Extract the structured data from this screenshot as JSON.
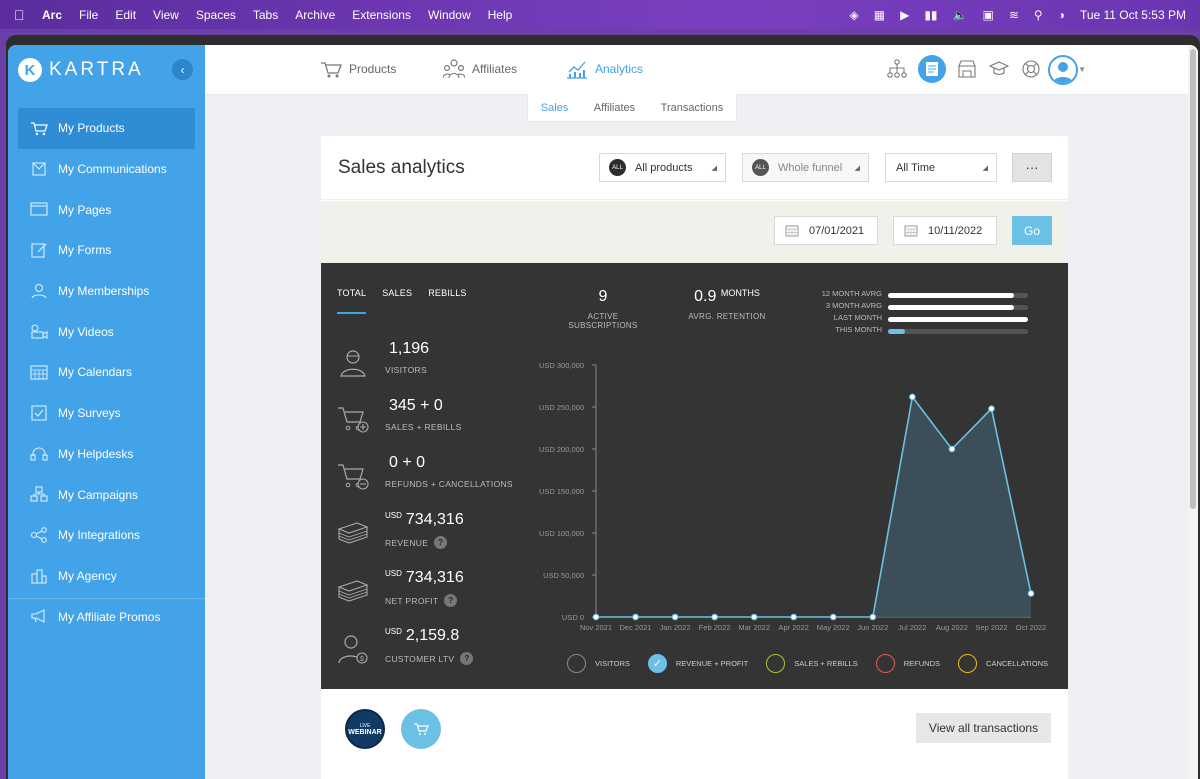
{
  "menubar": {
    "items": [
      "Arc",
      "File",
      "Edit",
      "View",
      "Spaces",
      "Tabs",
      "Archive",
      "Extensions",
      "Window",
      "Help"
    ],
    "clock": "Tue 11 Oct  5:53 PM"
  },
  "sidebar": {
    "logo": "KARTRA",
    "items": [
      {
        "label": "My Products",
        "icon": "products-icon"
      },
      {
        "label": "My Communications",
        "icon": "communications-icon"
      },
      {
        "label": "My Pages",
        "icon": "pages-icon"
      },
      {
        "label": "My Forms",
        "icon": "forms-icon"
      },
      {
        "label": "My Memberships",
        "icon": "memberships-icon"
      },
      {
        "label": "My Videos",
        "icon": "videos-icon"
      },
      {
        "label": "My Calendars",
        "icon": "calendars-icon"
      },
      {
        "label": "My Surveys",
        "icon": "surveys-icon"
      },
      {
        "label": "My Helpdesks",
        "icon": "helpdesks-icon"
      },
      {
        "label": "My Campaigns",
        "icon": "campaigns-icon"
      },
      {
        "label": "My Integrations",
        "icon": "integrations-icon"
      },
      {
        "label": "My Agency",
        "icon": "agency-icon"
      },
      {
        "label": "My Affiliate Promos",
        "icon": "affiliate-promos-icon"
      }
    ]
  },
  "topnav": {
    "tabs": [
      {
        "label": "Products",
        "icon": "cart-icon"
      },
      {
        "label": "Affiliates",
        "icon": "affiliates-icon"
      },
      {
        "label": "Analytics",
        "icon": "analytics-icon"
      }
    ]
  },
  "subtabs": [
    "Sales",
    "Affiliates",
    "Transactions"
  ],
  "panel": {
    "title": "Sales analytics",
    "filters": {
      "products": {
        "badge": "ALL",
        "label": "All products"
      },
      "funnel": {
        "badge": "ALL",
        "label": "Whole funnel"
      },
      "time": {
        "label": "All Time"
      },
      "more": "···"
    },
    "date_from": "07/01/2021",
    "date_to": "10/11/2022",
    "go": "Go"
  },
  "analytics": {
    "tabs": [
      "TOTAL",
      "SALES",
      "REBILLS"
    ],
    "metrics": [
      {
        "currency": "",
        "value": "1,196",
        "label": "VISITORS",
        "icon": "visitor-icon",
        "help": ""
      },
      {
        "currency": "",
        "value": "345 + 0",
        "label": "SALES + REBILLS",
        "icon": "cart-add-icon",
        "help": ""
      },
      {
        "currency": "",
        "value": "0 + 0",
        "label": "REFUNDS + CANCELLATIONS",
        "icon": "cart-remove-icon",
        "help": ""
      },
      {
        "currency": "USD",
        "value": "734,316",
        "label": "REVENUE",
        "icon": "money-icon",
        "help": "?"
      },
      {
        "currency": "USD",
        "value": "734,316",
        "label": "NET PROFIT",
        "icon": "money-icon",
        "help": "?"
      },
      {
        "currency": "USD",
        "value": "2,159.8",
        "label": "CUSTOMER LTV",
        "icon": "customer-dollar-icon",
        "help": "?"
      }
    ],
    "active_subscriptions": {
      "value": "9",
      "label": "ACTIVE SUBSCRIPTIONS"
    },
    "retention": {
      "value": "0.9",
      "unit": "MONTHS",
      "label": "AVRG. RETENTION"
    },
    "averages": [
      {
        "label": "12 MONTH AVRG",
        "level": 0.9
      },
      {
        "label": "3 MONTH AVRG",
        "level": 0.9
      },
      {
        "label": "LAST MONTH",
        "level": 1.0
      },
      {
        "label": "THIS MONTH",
        "level": 0.12
      }
    ],
    "legend": [
      {
        "label": "VISITORS",
        "color": "#8a8a8a",
        "checked": false
      },
      {
        "label": "REVENUE + PROFIT",
        "color": "#6cc0e5",
        "checked": true
      },
      {
        "label": "SALES + REBILLS",
        "color": "#9acd32",
        "checked": false
      },
      {
        "label": "REFUNDS",
        "color": "#e05a4f",
        "checked": false
      },
      {
        "label": "CANCELLATIONS",
        "color": "#e0c020",
        "checked": false
      }
    ]
  },
  "chart_data": {
    "type": "area",
    "categories": [
      "Nov 2021",
      "Dec 2021",
      "Jan 2022",
      "Feb 2022",
      "Mar 2022",
      "Apr 2022",
      "May 2022",
      "Jun 2022",
      "Jul 2022",
      "Aug 2022",
      "Sep 2022",
      "Oct 2022"
    ],
    "series": [
      {
        "values": [
          0,
          0,
          0,
          0,
          0,
          0,
          0,
          0,
          262000,
          200000,
          248000,
          28000
        ],
        "color": "#6cc0e5"
      }
    ],
    "yticks": [
      "USD 0",
      "USD 50,000",
      "USD 100,000",
      "USD 150,000",
      "USD 200,000",
      "USD 250,000",
      "USD 300,000"
    ],
    "ylim": [
      0,
      300000
    ],
    "grid": false
  },
  "bottom": {
    "thumb_label": "WEBINAR",
    "thumb_small": "LIVE",
    "view_all": "View all transactions"
  },
  "colors": {
    "accent": "#42a3e8",
    "dark": "#343434"
  }
}
